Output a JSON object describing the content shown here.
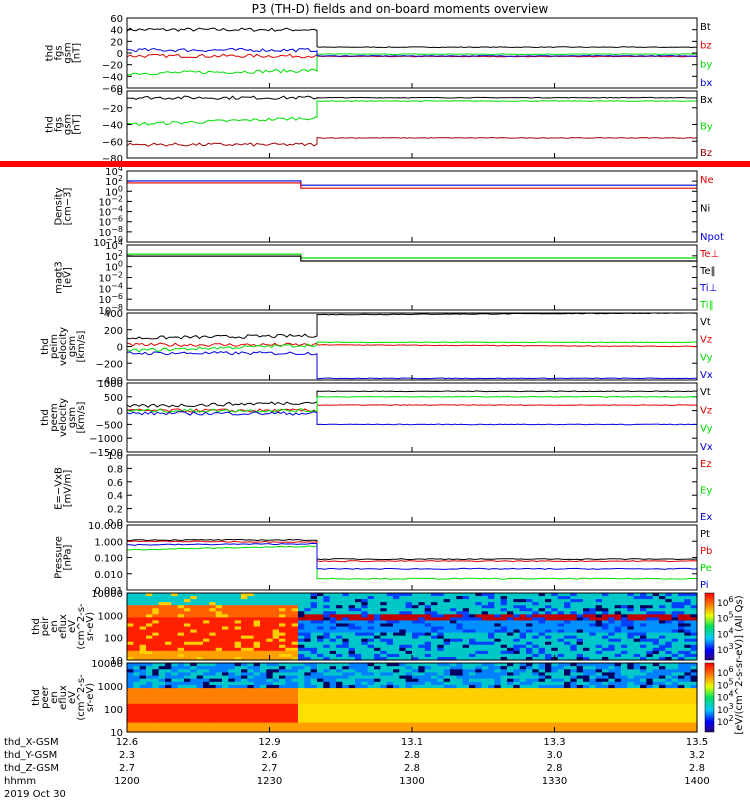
{
  "title": "P3 (TH-D) fields and on-board moments overview",
  "time_axis": {
    "row_labels": [
      "thd_X-GSM",
      "thd_Y-GSM",
      "thd_Z-GSM",
      "hhmm"
    ],
    "date": "2019 Oct 30",
    "ticks": [
      {
        "values": [
          "12.6",
          "2.3",
          "2.7",
          "1200"
        ]
      },
      {
        "values": [
          "12.9",
          "2.6",
          "2.7",
          "1230"
        ]
      },
      {
        "values": [
          "13.1",
          "2.8",
          "2.8",
          "1300"
        ]
      },
      {
        "values": [
          "13.3",
          "3.0",
          "2.8",
          "1330"
        ]
      },
      {
        "values": [
          "13.5",
          "3.2",
          "2.8",
          "1400"
        ]
      }
    ]
  },
  "colorbar": {
    "label": "[eV/(cm^2-s-sr-eV)] (All Qs)",
    "ticks_top": [
      "10^6",
      "10^5",
      "10^4",
      "10^3"
    ],
    "ticks_bottom": [
      "10^6",
      "10^5",
      "10^4",
      "10^3",
      "10^2"
    ]
  },
  "colors": {
    "black": "#000000",
    "red": "#e00000",
    "green": "#00dd00",
    "blue": "#0000dd",
    "darkred": "#a00000"
  },
  "chart_data": [
    {
      "type": "line",
      "panel": "fgs_gsm_bt",
      "ylabel": [
        "thd",
        "fgs",
        "gsm",
        "[nT]"
      ],
      "ylim": [
        -60,
        60
      ],
      "yticks": [
        "60",
        "40",
        "20",
        "0",
        "−20",
        "−40",
        "−60"
      ],
      "x_hhmm": [
        1200,
        1240,
        1240,
        1400
      ],
      "series": [
        {
          "name": "Bt",
          "color": "#000000",
          "values": [
            40,
            40,
            10,
            10
          ]
        },
        {
          "name": "bz",
          "color": "#e00000",
          "values": [
            -5,
            -5,
            -6,
            -6
          ]
        },
        {
          "name": "by",
          "color": "#00dd00",
          "values": [
            -35,
            -30,
            -2,
            -2
          ]
        },
        {
          "name": "bx",
          "color": "#0000dd",
          "values": [
            5,
            5,
            -5,
            -5
          ]
        }
      ]
    },
    {
      "type": "line",
      "panel": "fgs_gsm_bx",
      "ylabel": [
        "thd",
        "fgs",
        "gsm",
        "[nT]"
      ],
      "ylim": [
        -90,
        10
      ],
      "yticks": [
        "0",
        "−20",
        "−40",
        "−60",
        "−80"
      ],
      "x_hhmm": [
        1200,
        1240,
        1240,
        1400
      ],
      "series": [
        {
          "name": "Bx",
          "color": "#000000",
          "values": [
            0,
            0,
            0,
            0
          ]
        },
        {
          "name": "By",
          "color": "#00dd00",
          "values": [
            -40,
            -30,
            -5,
            -5
          ]
        },
        {
          "name": "Bz",
          "color": "#a00000",
          "values": [
            -70,
            -70,
            -60,
            -60
          ]
        }
      ]
    },
    {
      "type": "line",
      "panel": "density",
      "ylabel": [
        "Density",
        "[cm−3]"
      ],
      "ylog": true,
      "yticks": [
        "10^4",
        "10^2",
        "10^0",
        "10^−2",
        "10^−4",
        "10^−6",
        "10^−8",
        "10^−10"
      ],
      "series": [
        {
          "name": "Ne",
          "color": "#e00000"
        },
        {
          "name": "Ni",
          "color": "#000000"
        },
        {
          "name": "Npot",
          "color": "#0000dd"
        }
      ]
    },
    {
      "type": "line",
      "panel": "temperature",
      "ylabel": [
        "magt3",
        "[eV]"
      ],
      "ylog": true,
      "yticks": [
        "10^4",
        "10^2",
        "10^0",
        "10^−2",
        "10^−4",
        "10^−6",
        "10^−8"
      ],
      "series": [
        {
          "name": "Te⊥",
          "color": "#e00000"
        },
        {
          "name": "Te‖",
          "color": "#000000"
        },
        {
          "name": "Ti⊥",
          "color": "#0000dd"
        },
        {
          "name": "Ti‖",
          "color": "#00dd00"
        }
      ]
    },
    {
      "type": "line",
      "panel": "ion_velocity",
      "ylabel": [
        "thd",
        "peim",
        "velocity",
        "gsm",
        "[km/s]"
      ],
      "ylim": [
        -400,
        400
      ],
      "yticks": [
        "400",
        "200",
        "0",
        "−200",
        "−400"
      ],
      "x_hhmm": [
        1200,
        1240,
        1240,
        1400
      ],
      "series": [
        {
          "name": "Vt",
          "color": "#000000",
          "values": [
            100,
            130,
            380,
            400
          ]
        },
        {
          "name": "Vz",
          "color": "#e00000",
          "values": [
            20,
            20,
            20,
            0
          ]
        },
        {
          "name": "Vy",
          "color": "#00dd00",
          "values": [
            -50,
            20,
            50,
            50
          ]
        },
        {
          "name": "Vx",
          "color": "#0000dd",
          "values": [
            -80,
            -80,
            -380,
            -380
          ]
        }
      ]
    },
    {
      "type": "line",
      "panel": "electron_velocity",
      "ylabel": [
        "thd",
        "peem",
        "velocity",
        "gsm",
        "[km/s]"
      ],
      "ylim": [
        -1500,
        1000
      ],
      "yticks": [
        "1000",
        "500",
        "0",
        "−500",
        "−1000",
        "−1500"
      ],
      "x_hhmm": [
        1200,
        1240,
        1240,
        1400
      ],
      "series": [
        {
          "name": "Vt",
          "color": "#000000",
          "values": [
            150,
            300,
            700,
            700
          ]
        },
        {
          "name": "Vz",
          "color": "#e00000",
          "values": [
            0,
            0,
            200,
            200
          ]
        },
        {
          "name": "Vy",
          "color": "#00dd00",
          "values": [
            0,
            0,
            500,
            500
          ]
        },
        {
          "name": "Vx",
          "color": "#0000dd",
          "values": [
            -100,
            -100,
            -500,
            -500
          ]
        }
      ]
    },
    {
      "type": "line",
      "panel": "efield",
      "ylabel": [
        "E=−VxB",
        "[mV/m]"
      ],
      "ylim": [
        0,
        1
      ],
      "yticks": [
        "1.0",
        "0.8",
        "0.6",
        "0.4",
        "0.2",
        "0.0"
      ],
      "series": [
        {
          "name": "Ez",
          "color": "#e00000"
        },
        {
          "name": "Ey",
          "color": "#00dd00"
        },
        {
          "name": "Ex",
          "color": "#0000dd"
        }
      ]
    },
    {
      "type": "line",
      "panel": "pressure",
      "ylabel": [
        "Pressure",
        "[nPa]"
      ],
      "ylog": true,
      "yticks": [
        "10.000",
        "1.000",
        "0.100",
        "0.010",
        "0.001"
      ],
      "x_hhmm": [
        1200,
        1240,
        1240,
        1400
      ],
      "series": [
        {
          "name": "Pt",
          "color": "#000000",
          "values": [
            1.2,
            1.2,
            0.08,
            0.08
          ]
        },
        {
          "name": "Pb",
          "color": "#e00000",
          "values": [
            1.0,
            0.9,
            0.06,
            0.06
          ]
        },
        {
          "name": "Pe",
          "color": "#00dd00",
          "values": [
            0.3,
            0.5,
            0.005,
            0.005
          ]
        },
        {
          "name": "Pi",
          "color": "#0000dd",
          "values": [
            0.6,
            0.7,
            0.02,
            0.02
          ]
        }
      ]
    },
    {
      "type": "heatmap",
      "panel": "ion_spectrogram",
      "ylabel": [
        "thd",
        "peir",
        "en",
        "eflux",
        "eV",
        "(cm^2-s-",
        "sr-eV)"
      ],
      "yticks": [
        "10000",
        "1000",
        "100",
        "10"
      ]
    },
    {
      "type": "heatmap",
      "panel": "electron_spectrogram",
      "ylabel": [
        "thd",
        "peer",
        "en",
        "eflux",
        "eV",
        "(cm^2-s-",
        "sr-eV)"
      ],
      "yticks": [
        "10000",
        "1000",
        "100",
        "10"
      ]
    }
  ]
}
